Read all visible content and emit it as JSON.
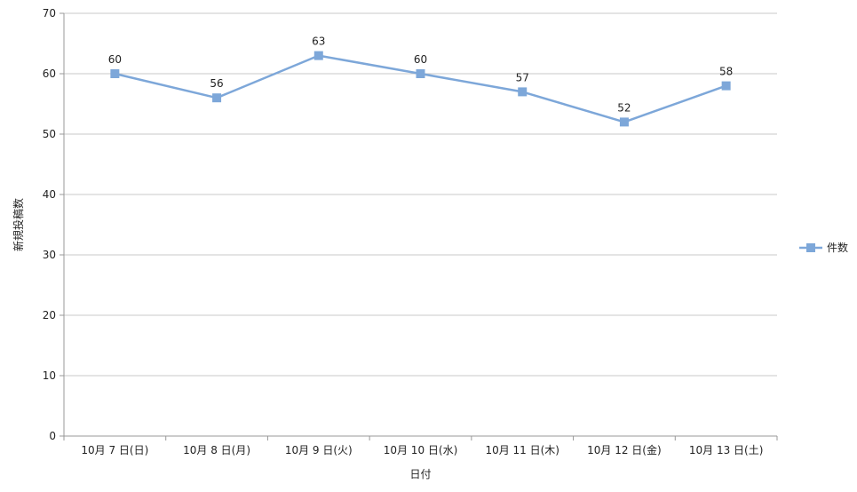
{
  "chart_data": {
    "type": "line",
    "categories": [
      "10月 7 日(日)",
      "10月 8 日(月)",
      "10月 9 日(火)",
      "10月 10 日(水)",
      "10月 11 日(木)",
      "10月 12 日(金)",
      "10月 13 日(土)"
    ],
    "series": [
      {
        "name": "件数",
        "values": [
          60,
          56,
          63,
          60,
          57,
          52,
          58
        ],
        "color": "#7da7d9",
        "marker": "square"
      }
    ],
    "xlabel": "日付",
    "ylabel": "新規投稿数",
    "ylim": [
      0,
      70
    ],
    "yticks": [
      0,
      10,
      20,
      30,
      40,
      50,
      60,
      70
    ],
    "grid": true,
    "data_labels": true,
    "legend_position": "right"
  }
}
